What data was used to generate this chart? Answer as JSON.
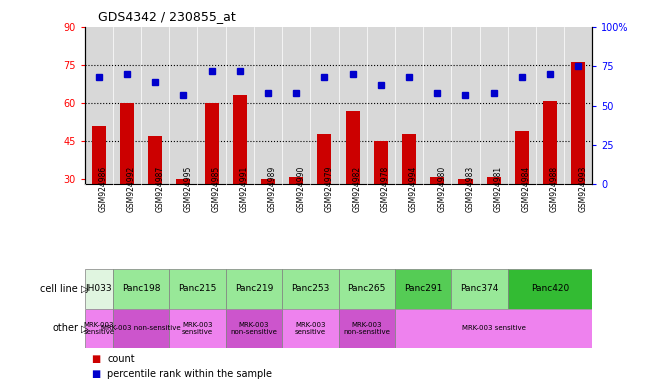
{
  "title": "GDS4342 / 230855_at",
  "samples": [
    "GSM924986",
    "GSM924992",
    "GSM924987",
    "GSM924995",
    "GSM924985",
    "GSM924991",
    "GSM924989",
    "GSM924990",
    "GSM924979",
    "GSM924982",
    "GSM924978",
    "GSM924994",
    "GSM924980",
    "GSM924983",
    "GSM924981",
    "GSM924984",
    "GSM924988",
    "GSM924993"
  ],
  "counts": [
    51,
    60,
    47,
    30,
    60,
    63,
    30,
    31,
    48,
    57,
    45,
    48,
    31,
    30,
    31,
    49,
    61,
    76
  ],
  "percentiles": [
    68,
    70,
    65,
    57,
    72,
    72,
    58,
    58,
    68,
    70,
    63,
    68,
    58,
    57,
    58,
    68,
    70,
    75
  ],
  "cell_lines": [
    {
      "name": "JH033",
      "start": 0,
      "end": 1,
      "color": "#e0f5e0"
    },
    {
      "name": "Panc198",
      "start": 1,
      "end": 3,
      "color": "#98e898"
    },
    {
      "name": "Panc215",
      "start": 3,
      "end": 5,
      "color": "#98e898"
    },
    {
      "name": "Panc219",
      "start": 5,
      "end": 7,
      "color": "#98e898"
    },
    {
      "name": "Panc253",
      "start": 7,
      "end": 9,
      "color": "#98e898"
    },
    {
      "name": "Panc265",
      "start": 9,
      "end": 11,
      "color": "#98e898"
    },
    {
      "name": "Panc291",
      "start": 11,
      "end": 13,
      "color": "#55cc55"
    },
    {
      "name": "Panc374",
      "start": 13,
      "end": 15,
      "color": "#98e898"
    },
    {
      "name": "Panc420",
      "start": 15,
      "end": 18,
      "color": "#33bb33"
    }
  ],
  "other_groups": [
    {
      "label": "MRK-003\nsensitive",
      "start": 0,
      "end": 1,
      "color": "#ee82ee"
    },
    {
      "label": "MRK-003 non-sensitive",
      "start": 1,
      "end": 3,
      "color": "#cc55cc"
    },
    {
      "label": "MRK-003\nsensitive",
      "start": 3,
      "end": 5,
      "color": "#ee82ee"
    },
    {
      "label": "MRK-003\nnon-sensitive",
      "start": 5,
      "end": 7,
      "color": "#cc55cc"
    },
    {
      "label": "MRK-003\nsensitive",
      "start": 7,
      "end": 9,
      "color": "#ee82ee"
    },
    {
      "label": "MRK-003\nnon-sensitive",
      "start": 9,
      "end": 11,
      "color": "#cc55cc"
    },
    {
      "label": "MRK-003 sensitive",
      "start": 11,
      "end": 18,
      "color": "#ee82ee"
    }
  ],
  "ylim_left": [
    28,
    90
  ],
  "ylim_right": [
    0,
    100
  ],
  "yticks_left": [
    30,
    45,
    60,
    75,
    90
  ],
  "yticks_right": [
    0,
    25,
    50,
    75,
    100
  ],
  "ytick_labels_right": [
    "0",
    "25",
    "50",
    "75",
    "100%"
  ],
  "hlines": [
    45,
    60,
    75
  ],
  "bar_color": "#cc0000",
  "dot_color": "#0000cc",
  "bar_width": 0.5,
  "bg_color": "#d8d8d8",
  "tick_bg_color": "#c8c8c8",
  "legend_bar_label": "count",
  "legend_dot_label": "percentile rank within the sample"
}
